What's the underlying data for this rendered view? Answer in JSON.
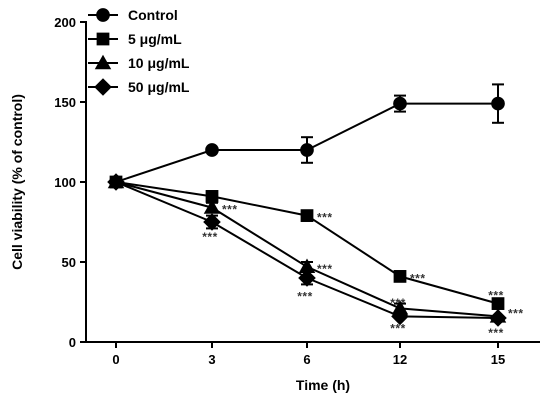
{
  "chart_data": {
    "type": "line",
    "xlabel": "Time (h)",
    "ylabel": "Cell viability (% of control)",
    "x_categories": [
      "0",
      "3",
      "6",
      "12",
      "15"
    ],
    "ylim": [
      0,
      200
    ],
    "yticks": [
      0,
      50,
      100,
      150,
      200
    ],
    "grid": false,
    "legend_position": "top-left",
    "series": [
      {
        "name": "Control",
        "marker": "circle",
        "values": [
          100,
          120,
          120,
          149,
          149
        ],
        "errors": [
          1.5,
          1.5,
          8,
          5,
          12
        ]
      },
      {
        "name": "5 μg/mL",
        "marker": "square",
        "values": [
          100,
          91,
          79,
          41,
          24
        ],
        "errors": [
          1.5,
          2,
          2,
          2,
          1.5
        ]
      },
      {
        "name": "10 μg/mL",
        "marker": "triangle",
        "values": [
          100,
          84,
          47,
          21,
          16
        ],
        "errors": [
          1.5,
          3,
          3,
          3,
          1.5
        ]
      },
      {
        "name": "50 μg/mL",
        "marker": "diamond",
        "values": [
          100,
          75,
          40,
          16,
          15
        ],
        "errors": [
          1.5,
          4,
          4,
          2,
          1.5
        ]
      }
    ],
    "annotations": [
      {
        "text": "***",
        "x_index": 1,
        "y": 84,
        "position": "right"
      },
      {
        "text": "***",
        "x_index": 1,
        "y": 68,
        "position": "below"
      },
      {
        "text": "***",
        "x_index": 2,
        "y": 79,
        "position": "right"
      },
      {
        "text": "***",
        "x_index": 2,
        "y": 47,
        "position": "right"
      },
      {
        "text": "***",
        "x_index": 2,
        "y": 31,
        "position": "below"
      },
      {
        "text": "***",
        "x_index": 3,
        "y": 41,
        "position": "right"
      },
      {
        "text": "***",
        "x_index": 3,
        "y": 27,
        "position": "below"
      },
      {
        "text": "***",
        "x_index": 3,
        "y": 11,
        "position": "below"
      },
      {
        "text": "***",
        "x_index": 4,
        "y": 29,
        "position": "above"
      },
      {
        "text": "***",
        "x_index": 4,
        "y": 19,
        "position": "right"
      },
      {
        "text": "***",
        "x_index": 4,
        "y": 8,
        "position": "below"
      }
    ]
  }
}
